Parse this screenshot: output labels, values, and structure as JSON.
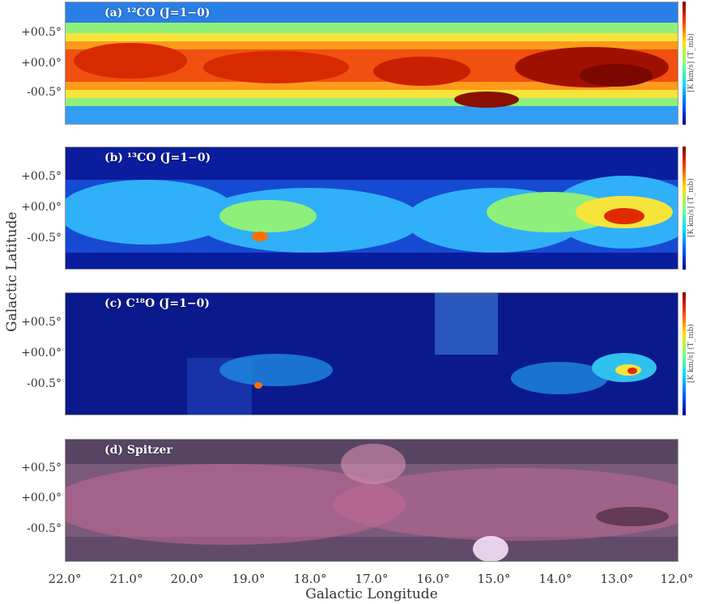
{
  "figure": {
    "y_axis_label": "Galactic Latitude",
    "x_axis_label": "Galactic Longitude",
    "x_ticks": [
      "22.0°",
      "21.0°",
      "20.0°",
      "19.0°",
      "18.0°",
      "17.0°",
      "16.0°",
      "15.0°",
      "14.0°",
      "13.0°",
      "12.0°"
    ],
    "y_ticks": [
      "+00.5°",
      "+00.0°",
      "-00.5°"
    ]
  },
  "panels": [
    {
      "id": "a",
      "label": "(a) ¹²CO (J=1−0)",
      "colorbar_label": "[K km/s] (T_mb)",
      "colormap": "jet",
      "background": "#4fd0ff"
    },
    {
      "id": "b",
      "label": "(b) ¹³CO (J=1−0)",
      "colorbar_label": "[K km/s] (T_mb)",
      "colormap": "jet",
      "background": "#0a1d9c"
    },
    {
      "id": "c",
      "label": "(c) C¹⁸O (J=1−0)",
      "colorbar_label": "[K km/s] (T_mb)",
      "colormap": "jet",
      "background": "#0a1a8c"
    },
    {
      "id": "d",
      "label": "(d) Spitzer",
      "colorbar_label": "",
      "colormap": "rgb",
      "background": "#9a6a8a"
    }
  ]
}
